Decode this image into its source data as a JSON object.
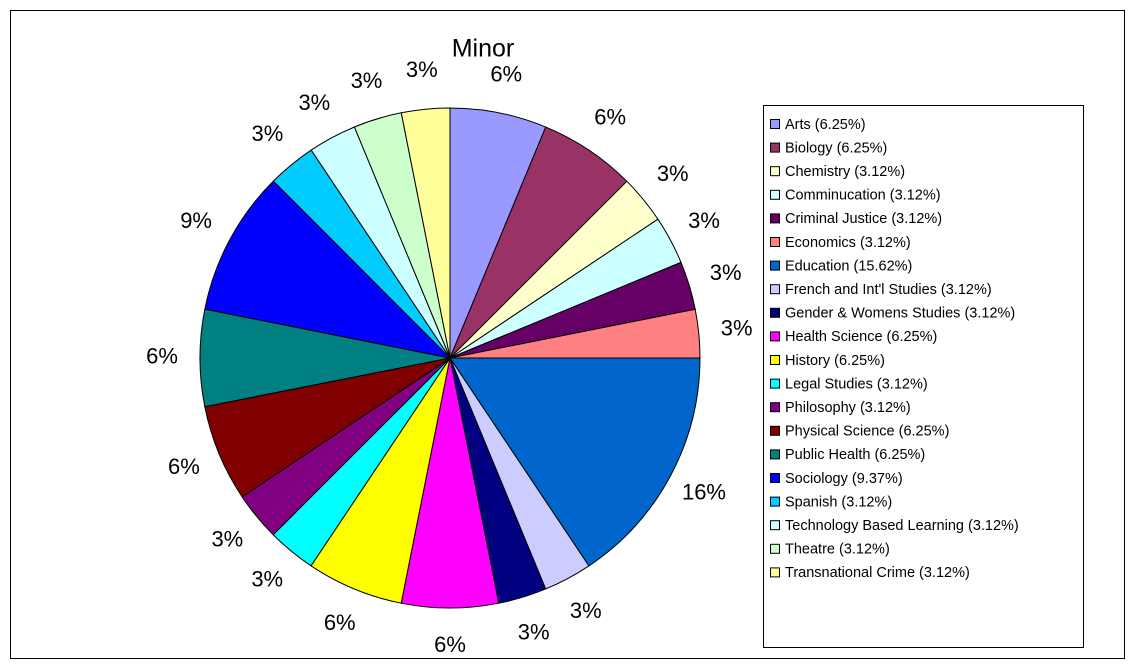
{
  "chart_data": {
    "type": "pie",
    "title": "Minor",
    "categories": [
      "Arts (6.25%)",
      "Biology (6.25%)",
      "Chemistry (3.12%)",
      "Comminucation (3.12%)",
      "Criminal Justice (3.12%)",
      "Economics (3.12%)",
      "Education (15.62%)",
      "French and Int'l Studies (3.12%)",
      "Gender & Womens Studies (3.12%)",
      "Health Science (6.25%)",
      "History (6.25%)",
      "Legal Studies (3.12%)",
      "Philosophy (3.12%)",
      "Physical Science (6.25%)",
      "Public Health (6.25%)",
      "Sociology (9.37%)",
      "Spanish (3.12%)",
      "Technology Based Learning (3.12%)",
      "Theatre (3.12%)",
      "Transnational Crime (3.12%)"
    ],
    "values": [
      6.25,
      6.25,
      3.12,
      3.12,
      3.12,
      3.12,
      15.62,
      3.12,
      3.12,
      6.25,
      6.25,
      3.12,
      3.12,
      6.25,
      6.25,
      9.37,
      3.12,
      3.12,
      3.12,
      3.12
    ],
    "value_labels": [
      "6%",
      "6%",
      "3%",
      "3%",
      "3%",
      "3%",
      "16%",
      "3%",
      "3%",
      "6%",
      "6%",
      "3%",
      "3%",
      "6%",
      "6%",
      "9%",
      "3%",
      "3%",
      "3%",
      "3%"
    ],
    "colors": [
      "#9999ff",
      "#993366",
      "#ffffcc",
      "#ccffff",
      "#660066",
      "#ff8080",
      "#0066cc",
      "#ccccff",
      "#000080",
      "#ff00ff",
      "#ffff00",
      "#00ffff",
      "#800080",
      "#800000",
      "#008080",
      "#0000ff",
      "#00ccff",
      "#ccffff",
      "#ccffcc",
      "#ffff99"
    ],
    "legend": "right"
  }
}
